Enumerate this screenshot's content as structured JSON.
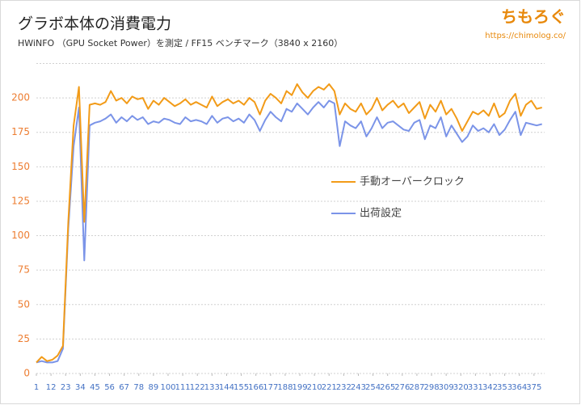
{
  "chart_data": {
    "type": "line",
    "title": "グラボ本体の消費電力",
    "subtitle": "HWiNFO （GPU Socket Power）を測定 / FF15 ベンチマーク（3840 x 2160）",
    "watermark": {
      "name": "ちもろぐ",
      "url": "https://chimolog.co/"
    },
    "x": [
      1,
      5,
      9,
      13,
      17,
      21,
      25,
      29,
      33,
      37,
      41,
      45,
      49,
      53,
      57,
      61,
      65,
      69,
      73,
      77,
      81,
      85,
      89,
      93,
      97,
      101,
      105,
      109,
      113,
      117,
      121,
      125,
      129,
      133,
      137,
      141,
      145,
      149,
      153,
      157,
      161,
      165,
      169,
      173,
      177,
      181,
      185,
      189,
      193,
      197,
      201,
      205,
      209,
      213,
      217,
      221,
      225,
      229,
      233,
      237,
      241,
      245,
      249,
      253,
      257,
      261,
      265,
      269,
      273,
      277,
      281,
      285,
      289,
      293,
      297,
      301,
      305,
      309,
      313,
      317,
      321,
      325,
      329,
      333,
      337,
      341,
      345,
      349,
      353,
      357,
      361,
      365,
      369,
      373,
      377,
      381
    ],
    "series": [
      {
        "name": "手動オーバークロック",
        "color": "#f29b18",
        "values": [
          8,
          12,
          9,
          10,
          13,
          20,
          110,
          180,
          208,
          110,
          195,
          196,
          195,
          197,
          205,
          198,
          200,
          196,
          201,
          199,
          200,
          192,
          198,
          195,
          200,
          197,
          194,
          196,
          199,
          195,
          197,
          195,
          193,
          201,
          194,
          197,
          199,
          196,
          198,
          195,
          200,
          197,
          188,
          198,
          203,
          200,
          196,
          205,
          202,
          210,
          204,
          200,
          205,
          208,
          206,
          210,
          205,
          188,
          196,
          192,
          190,
          196,
          188,
          192,
          200,
          191,
          195,
          198,
          193,
          196,
          189,
          193,
          197,
          185,
          195,
          190,
          198,
          188,
          192,
          185,
          176,
          183,
          190,
          188,
          191,
          187,
          196,
          186,
          189,
          198,
          203,
          187,
          195,
          198,
          192,
          193
        ]
      },
      {
        "name": "出荷設定",
        "color": "#7b94e8",
        "values": [
          8,
          9,
          8,
          8,
          9,
          18,
          105,
          165,
          193,
          82,
          180,
          182,
          183,
          185,
          188,
          182,
          186,
          183,
          187,
          184,
          186,
          181,
          183,
          182,
          185,
          184,
          182,
          181,
          186,
          183,
          184,
          183,
          181,
          187,
          182,
          185,
          186,
          183,
          185,
          182,
          188,
          184,
          176,
          184,
          190,
          186,
          183,
          192,
          190,
          196,
          192,
          188,
          193,
          197,
          193,
          198,
          196,
          165,
          183,
          180,
          178,
          183,
          172,
          178,
          186,
          178,
          182,
          183,
          180,
          177,
          176,
          182,
          184,
          170,
          180,
          178,
          186,
          172,
          180,
          174,
          168,
          172,
          180,
          176,
          178,
          175,
          181,
          173,
          177,
          184,
          190,
          173,
          182,
          181,
          180,
          181
        ]
      }
    ],
    "xlim": [
      1,
      383
    ],
    "xticks": [
      1,
      12,
      23,
      34,
      45,
      56,
      67,
      78,
      89,
      100,
      111,
      122,
      133,
      144,
      155,
      166,
      177,
      188,
      199,
      210,
      221,
      232,
      243,
      254,
      265,
      276,
      287,
      298,
      309,
      320,
      331,
      342,
      353,
      364,
      375
    ],
    "ylim": [
      0,
      225
    ],
    "yticks": [
      0,
      25,
      50,
      75,
      100,
      125,
      150,
      175,
      200
    ],
    "grid": true,
    "legend": "right",
    "xtick_color": "#4472c4",
    "ytick_color": "#ed7d31"
  }
}
